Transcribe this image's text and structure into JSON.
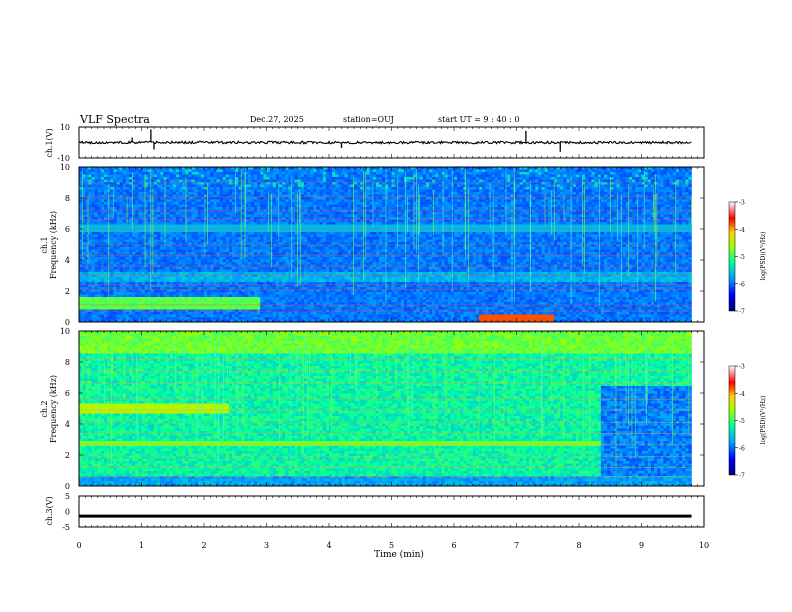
{
  "header": {
    "title": "VLF Spectra",
    "date": "Dec.27, 2025",
    "station": "station=OUJ",
    "start": "start UT =  9 : 40 : 0"
  },
  "chart_data": [
    {
      "type": "line",
      "panel": "ch1-waveform",
      "ylabel": "ch.1(V)",
      "ylim": [
        -10,
        10
      ],
      "yticks": [
        "10",
        "-10"
      ],
      "xlim": [
        0,
        10
      ],
      "x": [
        0.85,
        1.15,
        1.2,
        4.2,
        7.15,
        7.7
      ],
      "values": [
        3.2,
        8.5,
        -4.5,
        -3.5,
        7.5,
        -6.0
      ],
      "baseline": 0
    },
    {
      "type": "heatmap",
      "panel": "ch1-spectrogram",
      "ylabel": "ch.1\nFrequency (kHz)",
      "ylim": [
        0,
        10
      ],
      "yticks": [
        "0",
        "2",
        "4",
        "6",
        "8",
        "10"
      ],
      "xlim": [
        0,
        9.8
      ],
      "colorbar": {
        "label": "log(PSD)(V²/Hz)",
        "range": [
          -7,
          -3
        ],
        "ticks": [
          "-3",
          "-4",
          "-5",
          "-6",
          "-7"
        ]
      }
    },
    {
      "type": "heatmap",
      "panel": "ch2-spectrogram",
      "ylabel": "ch.2\nFrequency (kHz)",
      "ylim": [
        0,
        10
      ],
      "yticks": [
        "0",
        "2",
        "4",
        "6",
        "8",
        "10"
      ],
      "xlim": [
        0,
        9.8
      ],
      "colorbar": {
        "label": "log(PSD)(V²/Hz)",
        "range": [
          -7,
          -3
        ],
        "ticks": [
          "-3",
          "-4",
          "-5",
          "-6",
          "-7"
        ]
      }
    },
    {
      "type": "line",
      "panel": "ch3-waveform",
      "ylabel": "ch.3(V)",
      "ylim": [
        -5,
        5
      ],
      "yticks": [
        "5",
        "0",
        "-5"
      ],
      "xlim": [
        0,
        10
      ],
      "values": [
        -1.5
      ]
    }
  ],
  "xaxis": {
    "label": "Time (min)",
    "ticks": [
      "0",
      "1",
      "2",
      "3",
      "4",
      "5",
      "6",
      "7",
      "8",
      "9",
      "10"
    ],
    "range": [
      0,
      10
    ]
  },
  "colors": {
    "colormap": [
      "#00007a",
      "#0000ff",
      "#0070ff",
      "#00e0ff",
      "#00ff70",
      "#a0ff00",
      "#ffff00",
      "#ff8000",
      "#ff0000",
      "#ffffff"
    ]
  }
}
